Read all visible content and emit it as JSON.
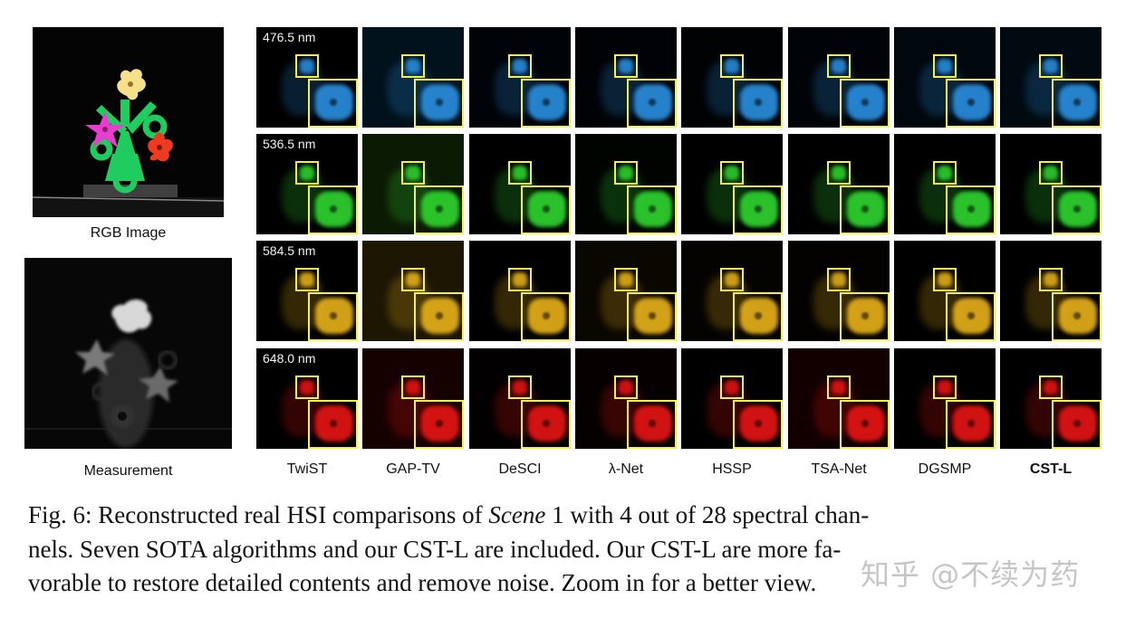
{
  "figure": {
    "side_panels": [
      {
        "label": "RGB Image"
      },
      {
        "label": "Measurement"
      }
    ],
    "wavelengths": [
      "476.5 nm",
      "536.5 nm",
      "584.5 nm",
      "648.0 nm"
    ],
    "row_colors": [
      "#2a8fe0",
      "#2fd62f",
      "#e8b21a",
      "#e81414"
    ],
    "methods": [
      "TwiST",
      "GAP-TV",
      "DeSCI",
      "λ-Net",
      "HSSP",
      "TSA-Net",
      "DGSMP",
      "CST-L"
    ],
    "zoom_box_color": "#f5f04a"
  },
  "caption": {
    "line1_a": "Fig. 6: Reconstructed real HSI comparisons of ",
    "line1_em": "Scene",
    "line1_b": " 1 with 4 out of 28 spectral chan-",
    "line2": "nels. Seven SOTA algorithms and our CST-L are included. Our CST-L are more fa-",
    "line3": "vorable to restore detailed contents and remove noise. Zoom in for a better view."
  },
  "watermark": "知乎 @不续为药"
}
